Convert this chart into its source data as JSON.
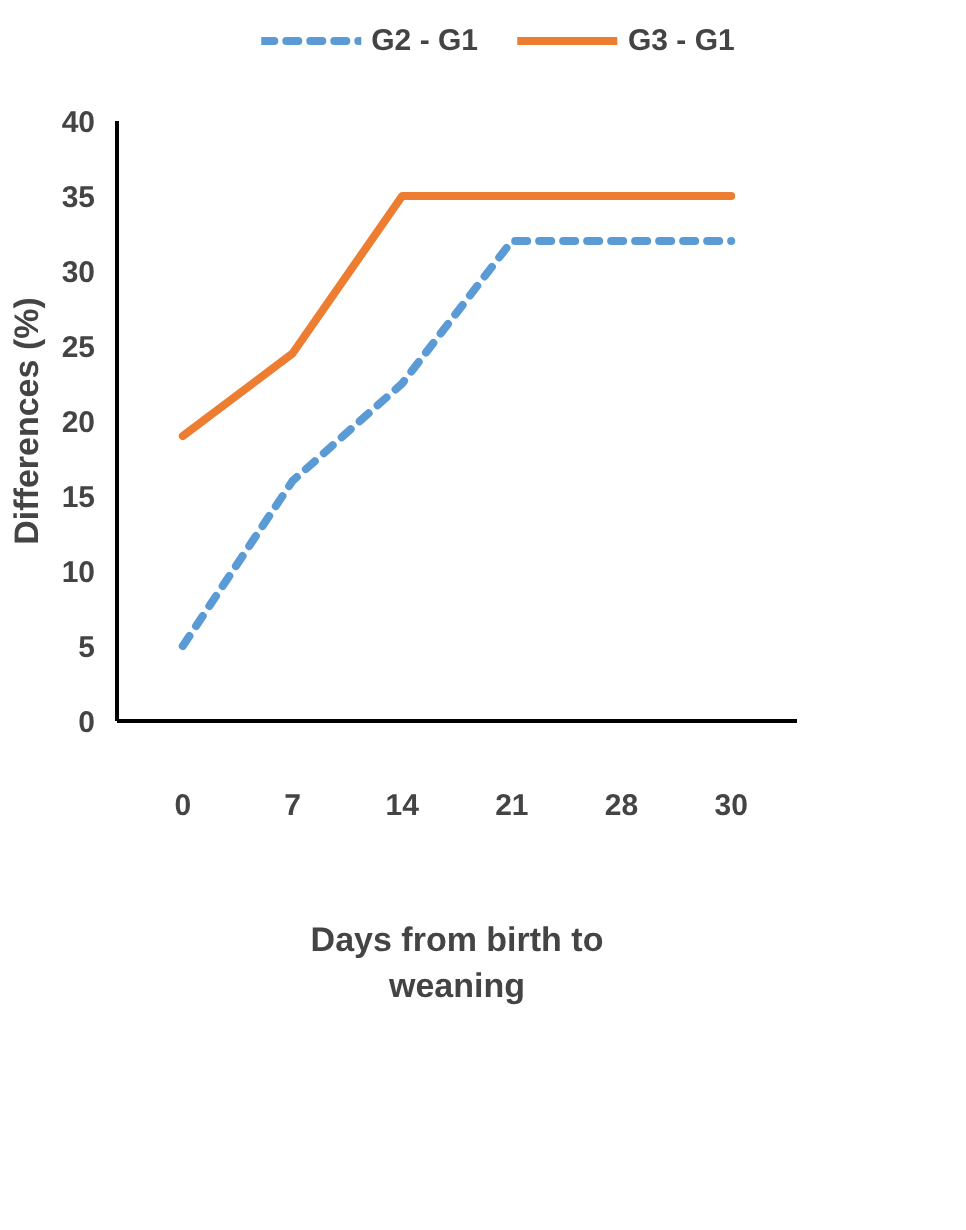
{
  "chart_data": {
    "type": "line",
    "xlabel": "Days from birth to weaning",
    "ylabel": "Differences (%)",
    "categories": [
      "0",
      "7",
      "14",
      "21",
      "28",
      "30"
    ],
    "series": [
      {
        "name": "G2 - G1",
        "color": "#5b9bd5",
        "line_style": "dashed",
        "values": [
          5,
          16,
          22.5,
          32,
          32,
          32
        ]
      },
      {
        "name": "G3 - G1",
        "color": "#ed7d31",
        "line_style": "solid",
        "values": [
          19,
          24.5,
          35,
          35,
          35,
          35
        ]
      }
    ],
    "ylim": [
      0,
      40
    ],
    "yticks": [
      0,
      5,
      10,
      15,
      20,
      25,
      30,
      35,
      40
    ],
    "grid": false,
    "legend": "top",
    "marker": "none"
  }
}
